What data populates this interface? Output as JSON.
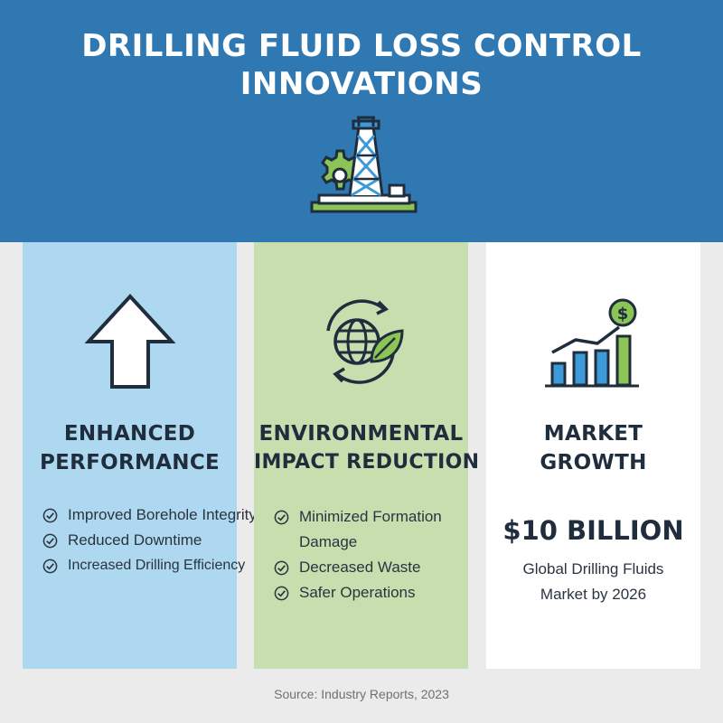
{
  "title": {
    "line1": "DRILLING FLUID LOSS CONTROL",
    "line2": "INNOVATIONS"
  },
  "header_icon": "drilling-rig-gear-icon",
  "cards": [
    {
      "icon": "up-arrow-icon",
      "heading_line1": "ENHANCED",
      "heading_line2": "PERFORMANCE",
      "items": [
        "Improved Borehole Integrity",
        "Reduced Downtime",
        "Increased Drilling Efficiency"
      ],
      "background": "#aed8ef"
    },
    {
      "icon": "globe-leaf-recycle-icon",
      "heading_line1": "ENVIRONMENTAL",
      "heading_line2": "IMPACT REDUCTION",
      "items": [
        "Minimized Formation Damage",
        "Decreased Waste",
        "Safer Operations"
      ],
      "background": "#c7dfae"
    },
    {
      "icon": "bar-chart-growth-dollar-icon",
      "heading_line1": "MARKET",
      "heading_line2": "GROWTH",
      "big_number": "$10 BILLION",
      "desc_line1": "Global Drilling Fluids",
      "desc_line2": "Market by 2026",
      "background": "#ffffff"
    }
  ],
  "source": "Source: Industry Reports, 2023",
  "colors": {
    "header": "#2f78b2",
    "accent_green": "#7fbf3f",
    "accent_blue": "#3d9ad8",
    "dark": "#1f2d3d"
  }
}
